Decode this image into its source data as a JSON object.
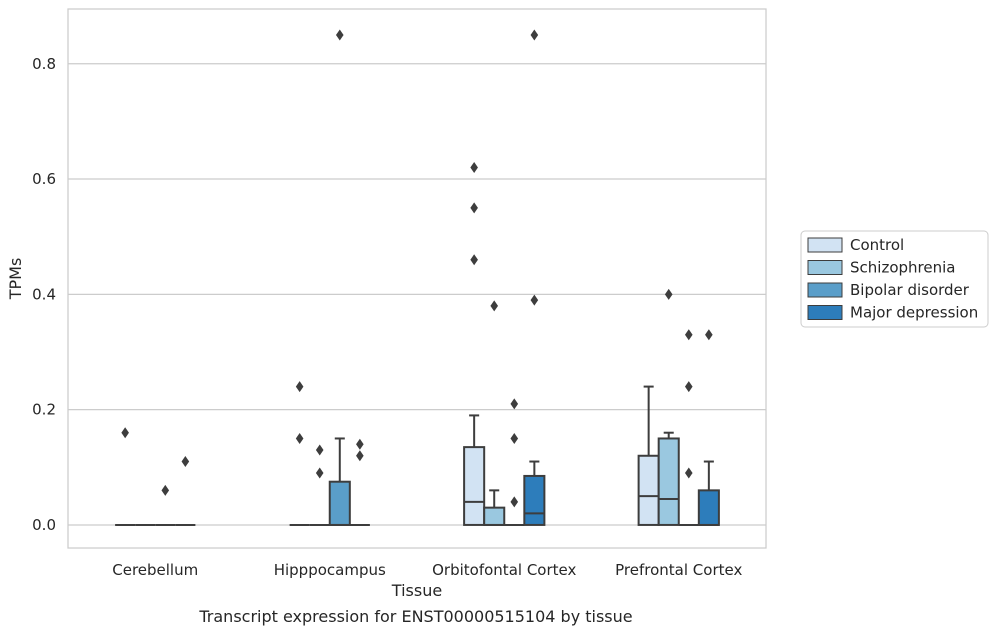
{
  "chart_data": {
    "type": "box",
    "title": "",
    "caption": "Transcript expression for ENST00000515104 by tissue",
    "xlabel": "Tissue",
    "ylabel": "TPMs",
    "ylim": [
      -0.04,
      0.895
    ],
    "yticks": [
      0.0,
      0.2,
      0.4,
      0.6,
      0.8
    ],
    "ytick_labels": [
      "0.0",
      "0.2",
      "0.4",
      "0.6",
      "0.8"
    ],
    "grid": "horizontal",
    "legend_position": "right",
    "categories": [
      "Cerebellum",
      "Hipppocampus",
      "Orbitofontal Cortex",
      "Prefrontal Cortex"
    ],
    "series": [
      {
        "name": "Control",
        "color": "#d2e3f3",
        "boxes": [
          {
            "q1": 0,
            "median": 0,
            "q3": 0,
            "whisker_low": 0,
            "whisker_high": 0,
            "outliers": [
              0.16
            ]
          },
          {
            "q1": 0,
            "median": 0,
            "q3": 0,
            "whisker_low": 0,
            "whisker_high": 0,
            "outliers": [
              0.24,
              0.15
            ]
          },
          {
            "q1": 0,
            "median": 0.04,
            "q3": 0.135,
            "whisker_low": 0,
            "whisker_high": 0.19,
            "outliers": [
              0.62,
              0.55,
              0.46
            ]
          },
          {
            "q1": 0,
            "median": 0.05,
            "q3": 0.12,
            "whisker_low": 0,
            "whisker_high": 0.24,
            "outliers": []
          }
        ]
      },
      {
        "name": "Schizophrenia",
        "color": "#9ac8e0",
        "boxes": [
          {
            "q1": 0,
            "median": 0,
            "q3": 0,
            "whisker_low": 0,
            "whisker_high": 0,
            "outliers": []
          },
          {
            "q1": 0,
            "median": 0,
            "q3": 0,
            "whisker_low": 0,
            "whisker_high": 0,
            "outliers": [
              0.13,
              0.09
            ]
          },
          {
            "q1": 0,
            "median": 0,
            "q3": 0.03,
            "whisker_low": 0,
            "whisker_high": 0.06,
            "outliers": [
              0.38
            ]
          },
          {
            "q1": 0,
            "median": 0.045,
            "q3": 0.15,
            "whisker_low": 0,
            "whisker_high": 0.16,
            "outliers": [
              0.4
            ]
          }
        ]
      },
      {
        "name": "Bipolar disorder",
        "color": "#5a9ec9",
        "boxes": [
          {
            "q1": 0,
            "median": 0,
            "q3": 0,
            "whisker_low": 0,
            "whisker_high": 0,
            "outliers": [
              0.06
            ]
          },
          {
            "q1": 0,
            "median": 0,
            "q3": 0.075,
            "whisker_low": 0,
            "whisker_high": 0.15,
            "outliers": [
              0.85
            ]
          },
          {
            "q1": 0,
            "median": 0,
            "q3": 0,
            "whisker_low": 0,
            "whisker_high": 0,
            "outliers": [
              0.21,
              0.15,
              0.04
            ]
          },
          {
            "q1": 0,
            "median": 0,
            "q3": 0,
            "whisker_low": 0,
            "whisker_high": 0,
            "outliers": [
              0.33,
              0.24,
              0.09
            ]
          }
        ]
      },
      {
        "name": "Major depression",
        "color": "#2d7dbb",
        "boxes": [
          {
            "q1": 0,
            "median": 0,
            "q3": 0,
            "whisker_low": 0,
            "whisker_high": 0,
            "outliers": [
              0.11
            ]
          },
          {
            "q1": 0,
            "median": 0,
            "q3": 0,
            "whisker_low": 0,
            "whisker_high": 0,
            "outliers": [
              0.14,
              0.12
            ]
          },
          {
            "q1": 0,
            "median": 0.02,
            "q3": 0.085,
            "whisker_low": 0,
            "whisker_high": 0.11,
            "outliers": [
              0.85,
              0.39
            ]
          },
          {
            "q1": 0,
            "median": 0,
            "q3": 0.06,
            "whisker_low": 0,
            "whisker_high": 0.11,
            "outliers": [
              0.33
            ]
          }
        ]
      }
    ]
  }
}
